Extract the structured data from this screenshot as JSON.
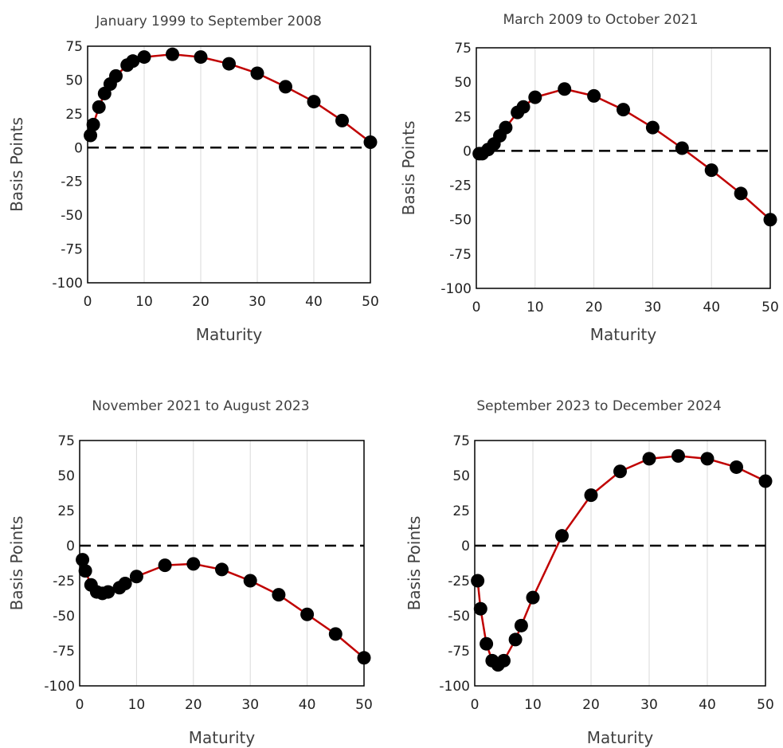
{
  "colors": {
    "line": "#c00000",
    "marker": "#000000",
    "grid": "#d9d9d9",
    "frame": "#000000",
    "zero_line": "#000000"
  },
  "chart_data": [
    {
      "type": "line",
      "title": "January 1999 to September 2008",
      "xlabel": "Maturity",
      "ylabel": "Basis Points",
      "xlim": [
        0,
        50
      ],
      "ylim": [
        -100,
        75
      ],
      "xticks": [
        0,
        10,
        20,
        30,
        40,
        50
      ],
      "yticks": [
        75,
        50,
        25,
        0,
        -25,
        -50,
        -75,
        -100
      ],
      "grid": "vertical",
      "reference_line": 0,
      "x": [
        0.5,
        1,
        2,
        3,
        4,
        5,
        7,
        8,
        10,
        15,
        20,
        25,
        30,
        35,
        40,
        45,
        50
      ],
      "y": [
        9,
        17,
        30,
        40,
        47,
        53,
        61,
        64,
        67,
        69,
        67,
        62,
        55,
        45,
        34,
        20,
        4
      ]
    },
    {
      "type": "line",
      "title": "March 2009 to October 2021",
      "xlabel": "Maturity",
      "ylabel": "Basis Points",
      "xlim": [
        0,
        50
      ],
      "ylim": [
        -100,
        75
      ],
      "xticks": [
        0,
        10,
        20,
        30,
        40,
        50
      ],
      "yticks": [
        75,
        50,
        25,
        0,
        -25,
        -50,
        -75,
        -100
      ],
      "grid": "vertical",
      "reference_line": 0,
      "x": [
        0.5,
        1,
        2,
        3,
        4,
        5,
        7,
        8,
        10,
        15,
        20,
        25,
        30,
        35,
        40,
        45,
        50
      ],
      "y": [
        -2,
        -2,
        1,
        5,
        11,
        17,
        28,
        32,
        39,
        45,
        40,
        30,
        17,
        2,
        -14,
        -31,
        -50
      ]
    },
    {
      "type": "line",
      "title": "November 2021 to August 2023",
      "xlabel": "Maturity",
      "ylabel": "Basis Points",
      "xlim": [
        0,
        50
      ],
      "ylim": [
        -100,
        75
      ],
      "xticks": [
        0,
        10,
        20,
        30,
        40,
        50
      ],
      "yticks": [
        75,
        50,
        25,
        0,
        -25,
        -50,
        -75,
        -100
      ],
      "grid": "vertical",
      "reference_line": 0,
      "x": [
        0.5,
        1,
        2,
        3,
        4,
        5,
        7,
        8,
        10,
        15,
        20,
        25,
        30,
        35,
        40,
        45,
        50
      ],
      "y": [
        -10,
        -18,
        -28,
        -33,
        -34,
        -33,
        -30,
        -27,
        -22,
        -14,
        -13,
        -17,
        -25,
        -35,
        -49,
        -63,
        -80
      ]
    },
    {
      "type": "line",
      "title": "September 2023 to December 2024",
      "xlabel": "Maturity",
      "ylabel": "Basis Points",
      "xlim": [
        0,
        50
      ],
      "ylim": [
        -100,
        75
      ],
      "xticks": [
        0,
        10,
        20,
        30,
        40,
        50
      ],
      "yticks": [
        75,
        50,
        25,
        0,
        -25,
        -50,
        -75,
        -100
      ],
      "grid": "vertical",
      "reference_line": 0,
      "x": [
        0.5,
        1,
        2,
        3,
        4,
        5,
        7,
        8,
        10,
        15,
        20,
        25,
        30,
        35,
        40,
        45,
        50
      ],
      "y": [
        -25,
        -45,
        -70,
        -82,
        -85,
        -82,
        -67,
        -57,
        -37,
        7,
        36,
        53,
        62,
        64,
        62,
        56,
        46
      ]
    }
  ]
}
